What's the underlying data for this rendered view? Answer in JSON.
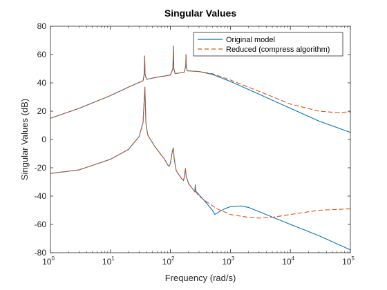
{
  "chart_data": {
    "type": "line",
    "title": "Singular Values",
    "xlabel": "Frequency (rad/s)",
    "ylabel": "Singular Values (dB)",
    "xscale": "log",
    "xlim": [
      1,
      100000
    ],
    "ylim": [
      -80,
      80
    ],
    "xticks": [
      {
        "base": "10",
        "exp": "0"
      },
      {
        "base": "10",
        "exp": "1"
      },
      {
        "base": "10",
        "exp": "2"
      },
      {
        "base": "10",
        "exp": "3"
      },
      {
        "base": "10",
        "exp": "4"
      },
      {
        "base": "10",
        "exp": "5"
      }
    ],
    "yticks": [
      "80",
      "60",
      "40",
      "20",
      "0",
      "-20",
      "-40",
      "-60",
      "-80"
    ],
    "grid": false,
    "legend_position": "top-right",
    "series": [
      {
        "name": "Original model",
        "color": "#0072BD",
        "style": "solid",
        "curves": [
          [
            [
              1,
              15
            ],
            [
              3,
              22
            ],
            [
              10,
              31
            ],
            [
              20,
              37
            ],
            [
              35,
              41.5
            ],
            [
              36.5,
              46
            ],
            [
              37.2,
              59
            ],
            [
              37.8,
              46
            ],
            [
              40,
              42.5
            ],
            [
              60,
              44
            ],
            [
              100,
              45.5
            ],
            [
              110,
              50
            ],
            [
              112,
              66
            ],
            [
              114,
              50
            ],
            [
              120,
              46.5
            ],
            [
              170,
              47.5
            ],
            [
              180,
              52
            ],
            [
              182,
              60
            ],
            [
              184,
              52
            ],
            [
              190,
              48.5
            ],
            [
              300,
              48
            ],
            [
              500,
              46
            ],
            [
              1000,
              41
            ],
            [
              3000,
              32
            ],
            [
              10000,
              22
            ],
            [
              30000,
              13
            ],
            [
              100000,
              5
            ]
          ],
          [
            [
              1,
              -24
            ],
            [
              3,
              -21.5
            ],
            [
              10,
              -14
            ],
            [
              20,
              -7
            ],
            [
              30,
              2
            ],
            [
              35,
              12
            ],
            [
              37.5,
              37
            ],
            [
              39,
              12
            ],
            [
              42,
              3
            ],
            [
              55,
              -5
            ],
            [
              80,
              -14
            ],
            [
              90,
              -18
            ],
            [
              95,
              -19
            ],
            [
              100,
              -17
            ],
            [
              108,
              -8
            ],
            [
              112,
              -6
            ],
            [
              116,
              -14
            ],
            [
              125,
              -22
            ],
            [
              150,
              -27
            ],
            [
              165,
              -29
            ],
            [
              172,
              -26
            ],
            [
              178,
              -20.5
            ],
            [
              183,
              -26
            ],
            [
              200,
              -31
            ],
            [
              255,
              -37
            ],
            [
              260,
              -32
            ],
            [
              265,
              -36.5
            ],
            [
              300,
              -39
            ],
            [
              400,
              -45
            ],
            [
              500,
              -50
            ],
            [
              550,
              -53
            ],
            [
              650,
              -51
            ],
            [
              800,
              -49
            ],
            [
              1000,
              -47.5
            ],
            [
              1500,
              -47
            ],
            [
              2000,
              -48
            ],
            [
              3000,
              -51
            ],
            [
              10000,
              -60
            ],
            [
              30000,
              -68
            ],
            [
              100000,
              -78
            ]
          ]
        ]
      },
      {
        "name": "Reduced (compress algorithm)",
        "color": "#D95319",
        "style": "dashed",
        "curves": [
          [
            [
              1,
              15
            ],
            [
              3,
              22
            ],
            [
              10,
              31
            ],
            [
              20,
              37
            ],
            [
              35,
              41.5
            ],
            [
              36.5,
              46
            ],
            [
              37.2,
              59
            ],
            [
              37.8,
              46
            ],
            [
              40,
              42.5
            ],
            [
              60,
              44
            ],
            [
              100,
              45.5
            ],
            [
              110,
              50
            ],
            [
              112,
              66
            ],
            [
              114,
              50
            ],
            [
              120,
              46.5
            ],
            [
              170,
              47.5
            ],
            [
              180,
              52
            ],
            [
              182,
              60
            ],
            [
              184,
              52
            ],
            [
              190,
              48.5
            ],
            [
              300,
              48
            ],
            [
              500,
              46.5
            ],
            [
              1000,
              42
            ],
            [
              3000,
              34
            ],
            [
              10000,
              25
            ],
            [
              30000,
              20
            ],
            [
              60000,
              19
            ],
            [
              100000,
              19.5
            ]
          ],
          [
            [
              1,
              -24
            ],
            [
              3,
              -21.5
            ],
            [
              10,
              -14
            ],
            [
              20,
              -7
            ],
            [
              30,
              2
            ],
            [
              35,
              12
            ],
            [
              37.5,
              37
            ],
            [
              39,
              12
            ],
            [
              42,
              3
            ],
            [
              55,
              -5
            ],
            [
              80,
              -14
            ],
            [
              90,
              -18
            ],
            [
              95,
              -19
            ],
            [
              100,
              -17
            ],
            [
              108,
              -8
            ],
            [
              112,
              -6
            ],
            [
              116,
              -14
            ],
            [
              125,
              -22
            ],
            [
              150,
              -27
            ],
            [
              165,
              -29
            ],
            [
              172,
              -26
            ],
            [
              178,
              -20.5
            ],
            [
              183,
              -26
            ],
            [
              200,
              -31
            ],
            [
              255,
              -37
            ],
            [
              260,
              -33
            ],
            [
              265,
              -37
            ],
            [
              300,
              -40
            ],
            [
              400,
              -44
            ],
            [
              600,
              -49
            ],
            [
              1000,
              -53
            ],
            [
              2000,
              -55
            ],
            [
              3000,
              -55.5
            ],
            [
              5000,
              -55
            ],
            [
              10000,
              -53
            ],
            [
              30000,
              -50
            ],
            [
              100000,
              -49
            ]
          ]
        ]
      }
    ]
  }
}
